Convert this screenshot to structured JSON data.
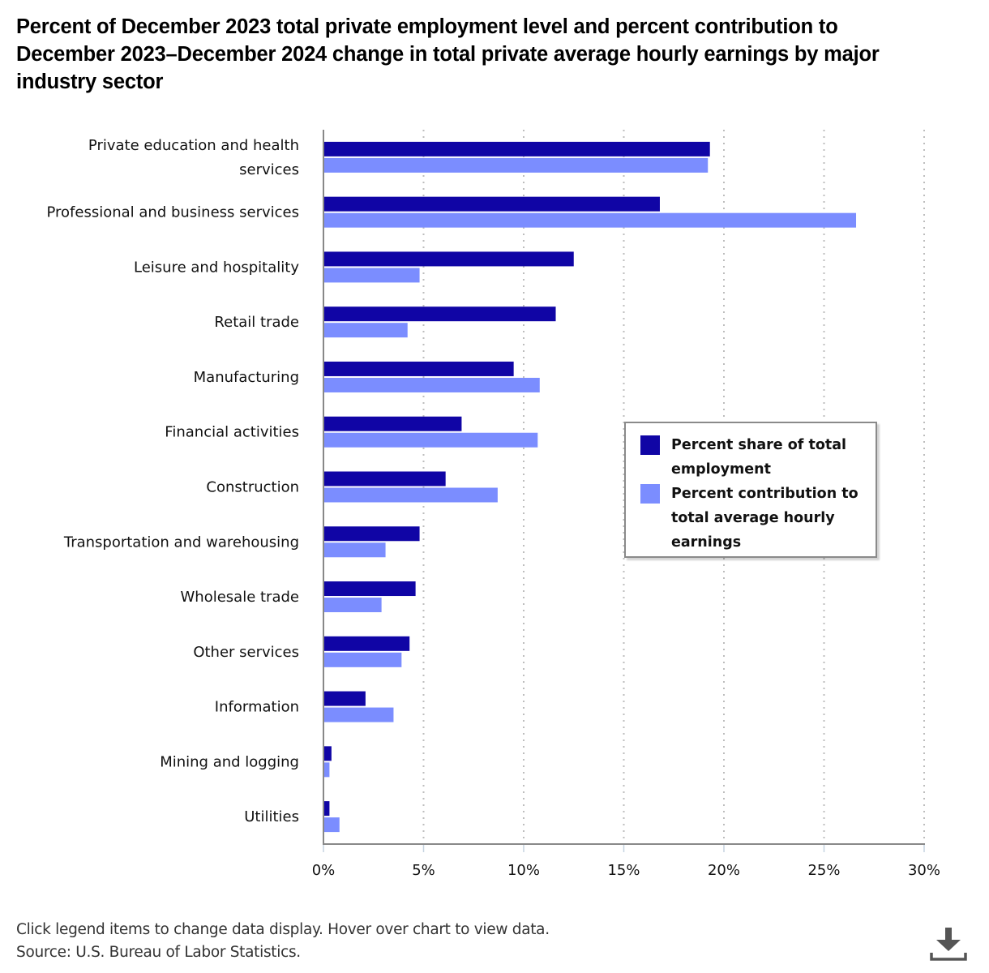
{
  "chart_data": {
    "type": "bar",
    "orientation": "horizontal",
    "title": "Percent of December 2023 total private employment level and percent contribution to December 2023–December 2024 change in total private average hourly earnings by major industry sector",
    "xlabel": "",
    "ylabel": "",
    "xlim": [
      0,
      30
    ],
    "x_ticks": [
      0,
      5,
      10,
      15,
      20,
      25,
      30
    ],
    "x_tick_labels": [
      "0%",
      "5%",
      "10%",
      "15%",
      "20%",
      "25%",
      "30%"
    ],
    "grid": "vertical dotted",
    "legend_position": "center-right",
    "categories": [
      "Private education and health services",
      "Professional and business services",
      "Leisure and hospitality",
      "Retail trade",
      "Manufacturing",
      "Financial activities",
      "Construction",
      "Transportation and warehousing",
      "Wholesale trade",
      "Other services",
      "Information",
      "Mining and logging",
      "Utilities"
    ],
    "category_label_lines": [
      [
        "Private education and health",
        "services"
      ],
      [
        "Professional and business services"
      ],
      [
        "Leisure and hospitality"
      ],
      [
        "Retail trade"
      ],
      [
        "Manufacturing"
      ],
      [
        "Financial activities"
      ],
      [
        "Construction"
      ],
      [
        "Transportation and warehousing"
      ],
      [
        "Wholesale trade"
      ],
      [
        "Other services"
      ],
      [
        "Information"
      ],
      [
        "Mining and logging"
      ],
      [
        "Utilities"
      ]
    ],
    "series": [
      {
        "name": "Percent share of total employment",
        "color": "#1005A5",
        "values": [
          19.3,
          16.8,
          12.5,
          11.6,
          9.5,
          6.9,
          6.1,
          4.8,
          4.6,
          4.3,
          2.1,
          0.4,
          0.3
        ]
      },
      {
        "name": "Percent contribution to total average hourly earnings",
        "color": "#7B8DFF",
        "values": [
          19.2,
          26.6,
          4.8,
          4.2,
          10.8,
          10.7,
          8.7,
          3.1,
          2.9,
          3.9,
          3.5,
          0.3,
          0.8
        ]
      }
    ]
  },
  "legend": {
    "items": [
      {
        "label_lines": [
          "Percent share of total",
          "employment"
        ],
        "color": "#1005A5"
      },
      {
        "label_lines": [
          "Percent contribution to",
          "total average hourly",
          "earnings"
        ],
        "color": "#7B8DFF"
      }
    ]
  },
  "footer": {
    "instructions": "Click legend items to change data display. Hover over chart to view data.",
    "source": "Source: U.S. Bureau of Labor Statistics."
  },
  "download": {
    "icon": "download-icon"
  }
}
